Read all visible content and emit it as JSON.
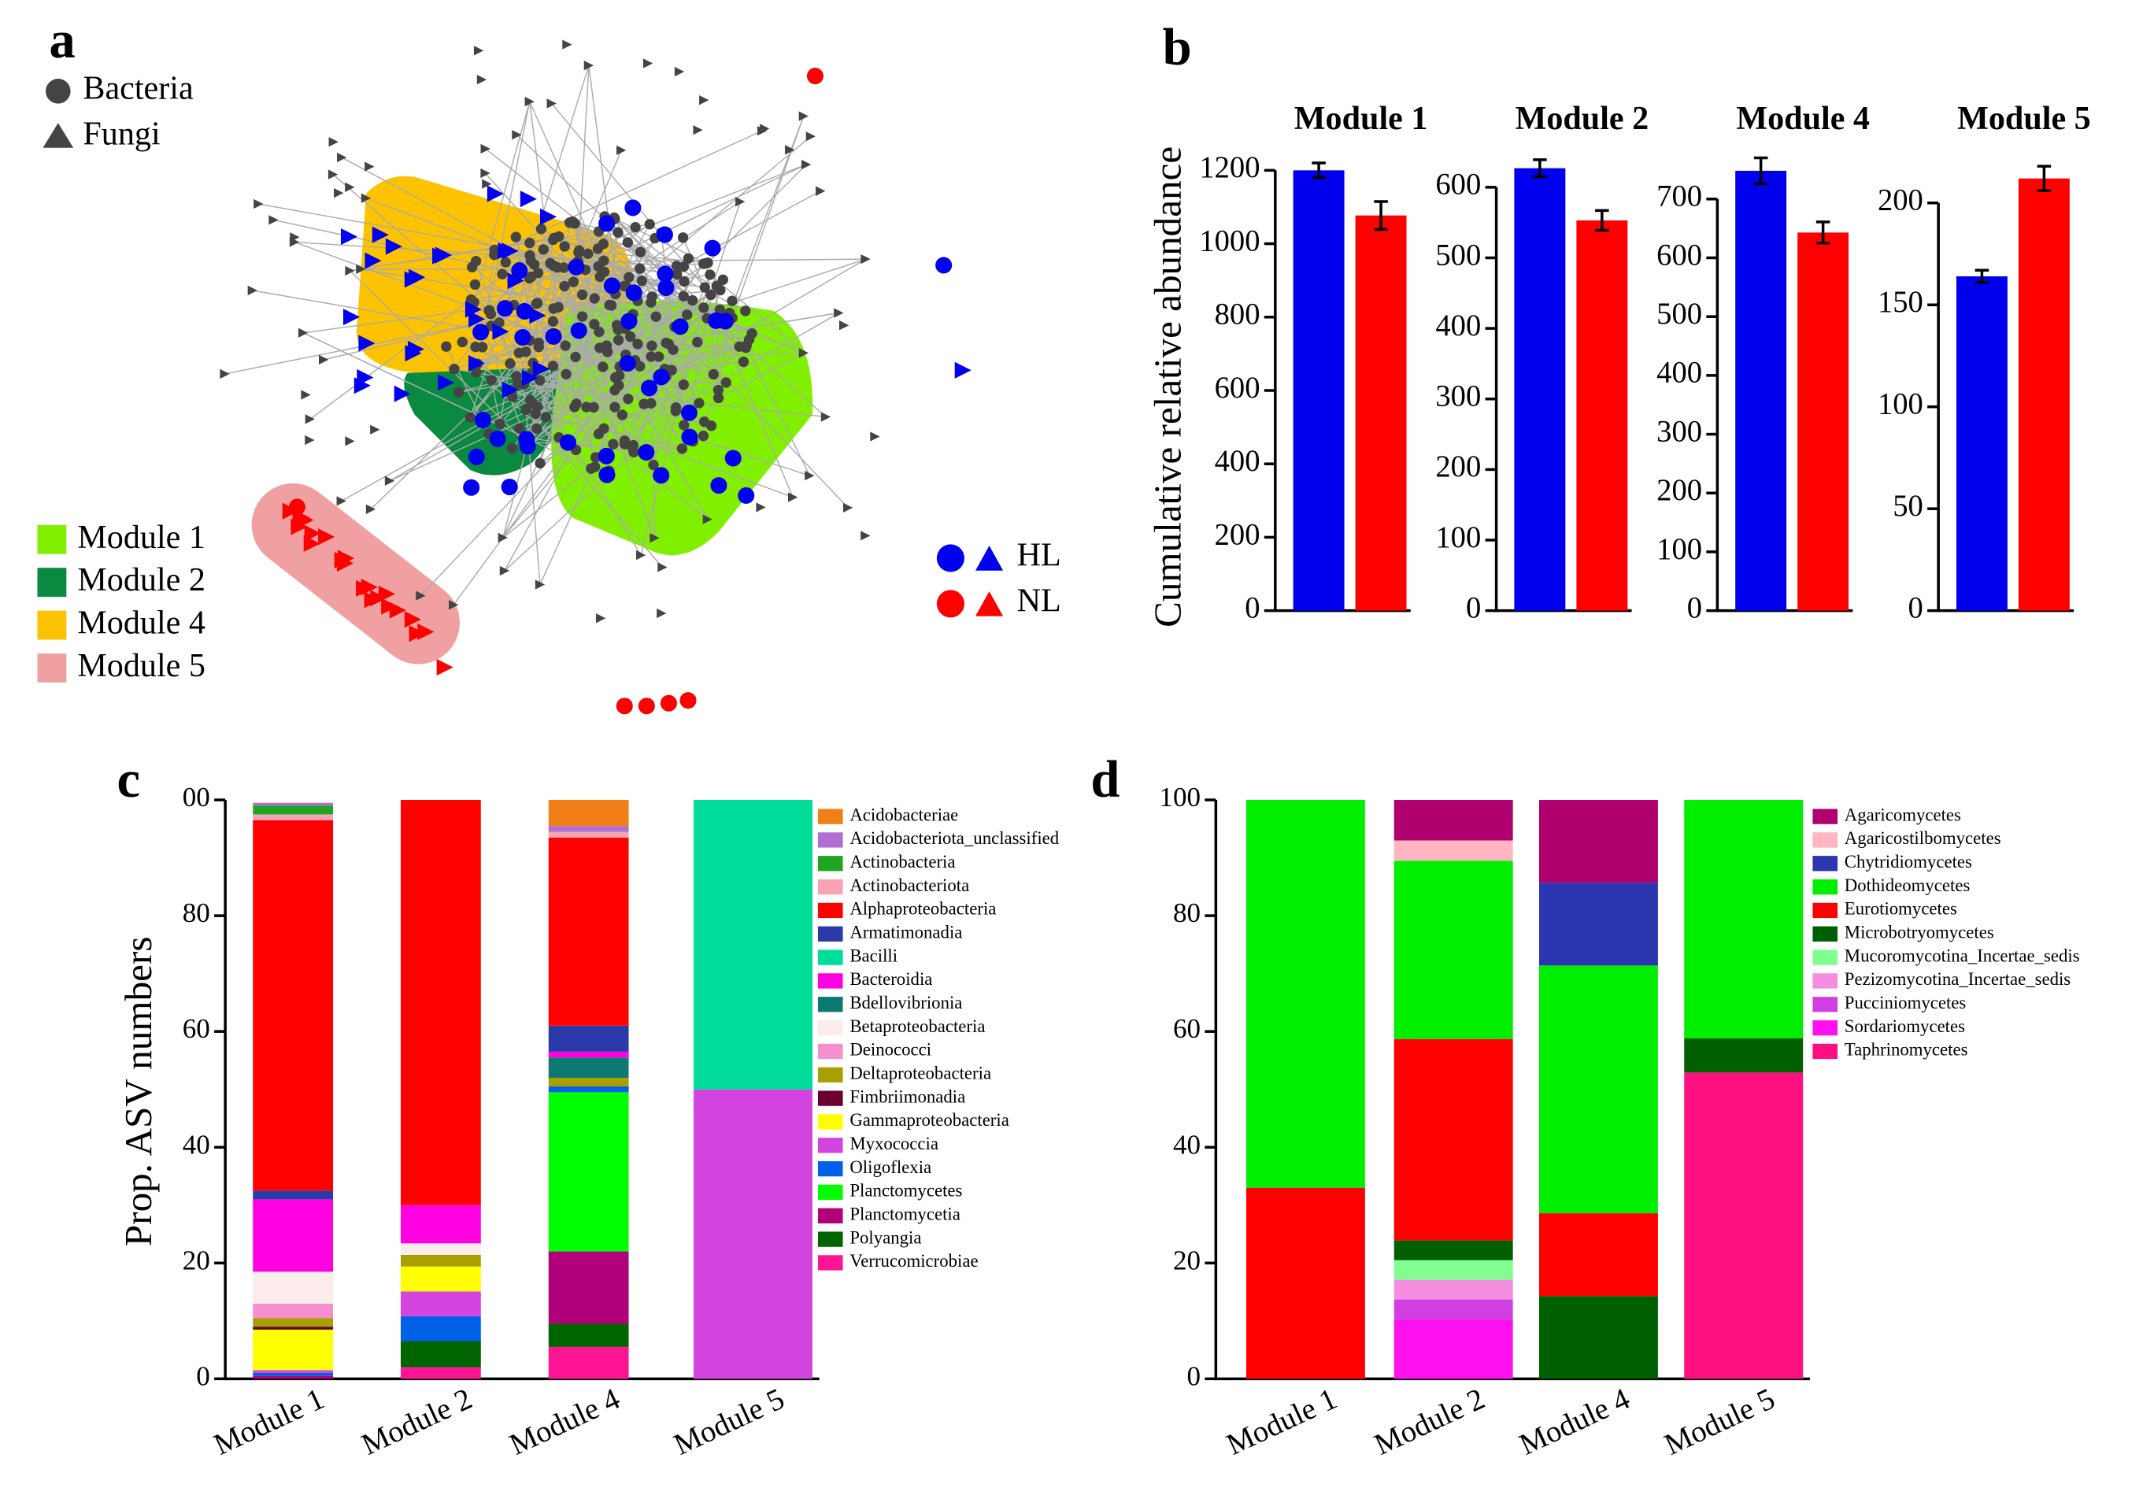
{
  "network": {
    "label": "a",
    "node_legend": [
      "Bacteria",
      "Fungi"
    ],
    "module_legend": [
      {
        "label": "Module 1",
        "color": "#80f000"
      },
      {
        "label": "Module 2",
        "color": "#0a8a40"
      },
      {
        "label": "Module 4",
        "color": "#fdc300"
      },
      {
        "label": "Module 5",
        "color": "#f0a0a0"
      }
    ],
    "group_legend": [
      {
        "label": "HL",
        "color": "#0000ee"
      },
      {
        "label": "NL",
        "color": "#ff0000"
      }
    ]
  },
  "chart_data": [
    {
      "type": "bar",
      "panel_label": "b",
      "ylabel": "Cumulative relative abundance",
      "title": "Module 1",
      "values": [
        1200,
        1077
      ],
      "errors": [
        20,
        38
      ],
      "colors": [
        "#0000ee",
        "#ff0000"
      ],
      "ylim": [
        0,
        1250
      ],
      "yticks": [
        0,
        200,
        400,
        600,
        800,
        1000,
        1200
      ]
    },
    {
      "type": "bar",
      "title": "Module 2",
      "values": [
        627,
        553
      ],
      "errors": [
        12,
        14
      ],
      "colors": [
        "#0000ee",
        "#ff0000"
      ],
      "ylim": [
        0,
        650
      ],
      "yticks": [
        0,
        100,
        200,
        300,
        400,
        500,
        600
      ]
    },
    {
      "type": "bar",
      "title": "Module 4",
      "values": [
        748,
        643
      ],
      "errors": [
        22,
        18
      ],
      "colors": [
        "#0000ee",
        "#ff0000"
      ],
      "ylim": [
        0,
        780
      ],
      "yticks": [
        0,
        100,
        200,
        300,
        400,
        500,
        600,
        700
      ]
    },
    {
      "type": "bar",
      "title": "Module 5",
      "values": [
        164,
        212
      ],
      "errors": [
        3,
        6
      ],
      "colors": [
        "#0000ee",
        "#ff0000"
      ],
      "ylim": [
        0,
        225
      ],
      "yticks": [
        0,
        50,
        100,
        150,
        200
      ]
    },
    {
      "type": "stacked_bar",
      "panel_label": "c",
      "ylabel": "Prop. ASV numbers",
      "categories": [
        "Module 1",
        "Module 2",
        "Module 4",
        "Module 5"
      ],
      "ylim": [
        0,
        100
      ],
      "yticks": [
        0,
        20,
        40,
        60,
        80,
        {
          "value": 100,
          "label": "00"
        }
      ],
      "series": [
        {
          "name": "Acidobacteriae",
          "color": "#f07f17",
          "values": [
            0,
            0,
            4.5,
            0
          ]
        },
        {
          "name": "Acidobacteriota_unclassified",
          "color": "#b06fd0",
          "values": [
            0.5,
            0,
            1,
            0
          ]
        },
        {
          "name": "Actinobacteria",
          "color": "#1fa51f",
          "values": [
            1.5,
            0,
            0,
            0
          ]
        },
        {
          "name": "Actinobacteriota",
          "color": "#f7a3b4",
          "values": [
            1,
            0,
            1,
            0
          ]
        },
        {
          "name": "Alphaproteobacteria",
          "color": "#ff0000",
          "values": [
            64,
            70,
            32.5,
            0
          ]
        },
        {
          "name": "Armatimonadia",
          "color": "#2b3aa8",
          "values": [
            1.5,
            0,
            4.5,
            0
          ]
        },
        {
          "name": "Bacilli",
          "color": "#00dd9a",
          "values": [
            0,
            0,
            0,
            50
          ]
        },
        {
          "name": "Bacteroidia",
          "color": "#ff00e0",
          "values": [
            12.5,
            6.6,
            1,
            0
          ]
        },
        {
          "name": "Bdellovibrionia",
          "color": "#0d7a72",
          "values": [
            0,
            0,
            3.5,
            0
          ]
        },
        {
          "name": "Betaproteobacteria",
          "color": "#fcecec",
          "values": [
            5.5,
            2,
            0,
            0
          ]
        },
        {
          "name": "Deinococci",
          "color": "#f590d0",
          "values": [
            2.5,
            0,
            0,
            0
          ]
        },
        {
          "name": "Deltaproteobacteria",
          "color": "#a8a000",
          "values": [
            1.5,
            2,
            1.5,
            0
          ]
        },
        {
          "name": "Fimbriimonadia",
          "color": "#6b0030",
          "values": [
            0.5,
            0,
            0,
            0
          ]
        },
        {
          "name": "Gammaproteobacteria",
          "color": "#ffff00",
          "values": [
            7,
            4.3,
            0,
            0
          ]
        },
        {
          "name": "Myxococcia",
          "color": "#d444e0",
          "values": [
            0.5,
            4.3,
            0,
            50
          ]
        },
        {
          "name": "Oligoflexia",
          "color": "#0060e8",
          "values": [
            0.5,
            4.3,
            1,
            0
          ]
        },
        {
          "name": "Planctomycetes",
          "color": "#00ff00",
          "values": [
            0,
            0,
            27.5,
            0
          ]
        },
        {
          "name": "Planctomycetia",
          "color": "#b0007a",
          "values": [
            0.5,
            0,
            12.5,
            0
          ]
        },
        {
          "name": "Polyangia",
          "color": "#006400",
          "values": [
            0,
            4.5,
            4,
            0
          ]
        },
        {
          "name": "Verrucomicrobiae",
          "color": "#ff1493",
          "values": [
            0,
            2,
            5.5,
            0
          ]
        }
      ]
    },
    {
      "type": "stacked_bar",
      "panel_label": "d",
      "categories": [
        "Module 1",
        "Module 2",
        "Module 4",
        "Module 5"
      ],
      "ylim": [
        0,
        100
      ],
      "yticks": [
        0,
        20,
        40,
        60,
        80,
        100
      ],
      "series": [
        {
          "name": "Agaricomycetes",
          "color": "#b0006e",
          "values": [
            0,
            7,
            14.3,
            0
          ]
        },
        {
          "name": "Agaricostilbomycetes",
          "color": "#ffb6c1",
          "values": [
            0,
            3.5,
            0,
            0
          ]
        },
        {
          "name": "Chytridiomycetes",
          "color": "#2b36b0",
          "values": [
            0,
            0,
            14.3,
            0
          ]
        },
        {
          "name": "Dothideomycetes",
          "color": "#00ee00",
          "values": [
            67,
            30.8,
            42.8,
            41.2
          ]
        },
        {
          "name": "Eurotiomycetes",
          "color": "#ff0000",
          "values": [
            33,
            34.8,
            14.3,
            0
          ]
        },
        {
          "name": "Microbotryomycetes",
          "color": "#005f00",
          "values": [
            0,
            3.4,
            14.3,
            5.9
          ]
        },
        {
          "name": "Mucoromycotina_Incertae_sedis",
          "color": "#80ff90",
          "values": [
            0,
            3.4,
            0,
            0
          ]
        },
        {
          "name": "Pezizomycotina_Incertae_sedis",
          "color": "#f58ee0",
          "values": [
            0,
            3.4,
            0,
            0
          ]
        },
        {
          "name": "Pucciniomycetes",
          "color": "#d040e0",
          "values": [
            0,
            3.4,
            0,
            0
          ]
        },
        {
          "name": "Sordariomycetes",
          "color": "#ff10ee",
          "values": [
            0,
            10.3,
            0,
            0
          ]
        },
        {
          "name": "Taphrinomycetes",
          "color": "#ff1080",
          "values": [
            0,
            0,
            0,
            52.9
          ]
        }
      ]
    }
  ]
}
